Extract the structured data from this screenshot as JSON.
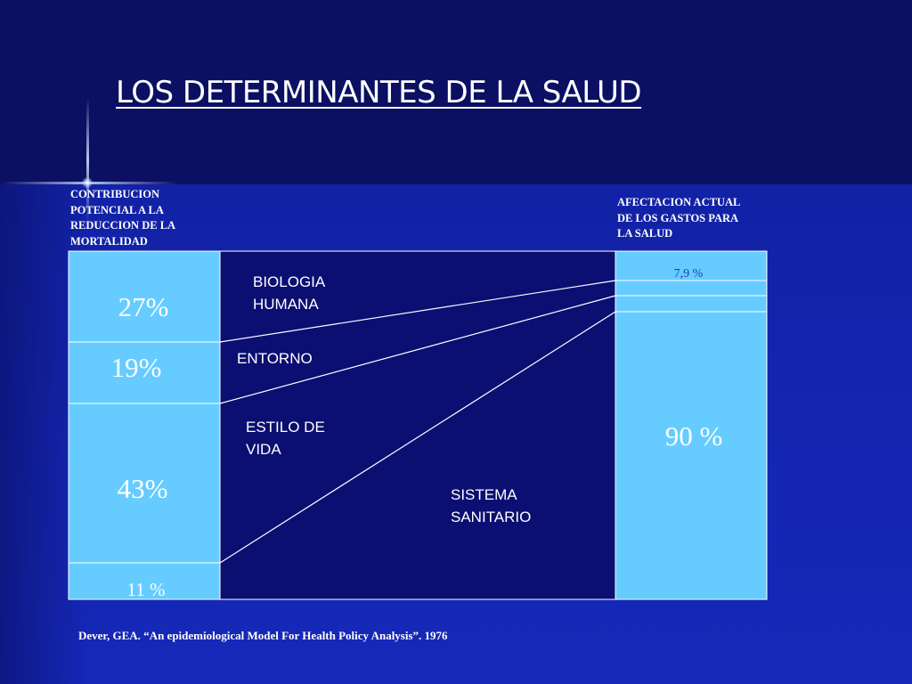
{
  "title": "LOS DETERMINANTES DE LA SALUD",
  "left_caption": [
    "CONTRIBUCION",
    "POTENCIAL A LA",
    "REDUCCION DE LA",
    "MORTALIDAD"
  ],
  "right_caption": [
    "AFECTACION ACTUAL",
    "DE LOS GASTOS PARA",
    "LA SALUD"
  ],
  "left_segments": [
    {
      "label": "27%"
    },
    {
      "label": "19%"
    },
    {
      "label": "43%"
    },
    {
      "label": "11 %"
    }
  ],
  "right_segments": [
    {
      "label": "7,9 %"
    },
    {
      "label": ""
    },
    {
      "label": ""
    },
    {
      "label": "90 %"
    }
  ],
  "determinants": [
    [
      "BIOLOGIA",
      "HUMANA"
    ],
    [
      "ENTORNO"
    ],
    [
      "ESTILO DE",
      "VIDA"
    ],
    [
      "SISTEMA",
      "SANITARIO"
    ]
  ],
  "citation": "Dever, GEA. “An epidemiological Model For Health Policy Analysis”. 1976",
  "colors": {
    "background_top": "#0b1063",
    "background_bottom": "#1426b2",
    "box_fill": "#66ccff",
    "center_fill": "#0b0f72",
    "line": "#ffffff",
    "small_label": "#1f3fae"
  }
}
